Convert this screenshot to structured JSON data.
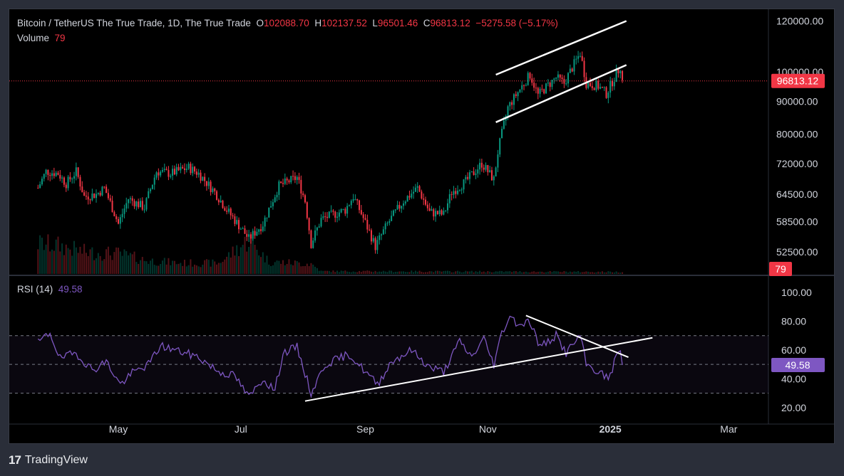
{
  "header": {
    "symbol": "Bitcoin / TetherUS The True Trade, 1D, The True Trade",
    "open_label": "O",
    "open": "102088.70",
    "high_label": "H",
    "high": "102137.52",
    "low_label": "L",
    "low": "96501.46",
    "close_label": "C",
    "close": "96813.12",
    "change": "−5275.58 (−5.17%)",
    "volume_label": "Volume",
    "volume": "79",
    "rsi_label": "RSI (14)",
    "rsi": "49.58"
  },
  "footer": {
    "brand": "TradingView",
    "logo": "tradingview-logo"
  },
  "colors": {
    "up": "#089981",
    "down": "#f23645",
    "rsi": "#7e57c2",
    "trendline": "#ffffff",
    "background": "#000000"
  },
  "chart_data": [
    {
      "type": "candlestick",
      "title": "Bitcoin / TetherUS The True Trade, 1D, The True Trade",
      "y_ticks": [
        "120000.00",
        "100000.00",
        "90000.00",
        "80000.00",
        "72000.00",
        "64500.00",
        "58500.00",
        "52500.00"
      ],
      "y_scale": "log",
      "ylim": [
        48500,
        122000
      ],
      "x_ticks": [
        "May",
        "Jul",
        "Sep",
        "Nov",
        "2025",
        "Mar"
      ],
      "x_range": [
        "2024-03-22",
        "2025-03-28"
      ],
      "last_price": "96813.12",
      "volume_last": "79",
      "price_path": [
        [
          "2024-03-22",
          66000
        ],
        [
          "2024-03-26",
          70000
        ],
        [
          "2024-04-01",
          69500
        ],
        [
          "2024-04-05",
          67000
        ],
        [
          "2024-04-10",
          70000
        ],
        [
          "2024-04-14",
          64000
        ],
        [
          "2024-04-20",
          64500
        ],
        [
          "2024-04-24",
          66000
        ],
        [
          "2024-05-01",
          58000
        ],
        [
          "2024-05-06",
          63500
        ],
        [
          "2024-05-14",
          61500
        ],
        [
          "2024-05-20",
          70000
        ],
        [
          "2024-05-27",
          69500
        ],
        [
          "2024-06-05",
          71000
        ],
        [
          "2024-06-10",
          69500
        ],
        [
          "2024-06-18",
          65000
        ],
        [
          "2024-06-24",
          61000
        ],
        [
          "2024-07-05",
          55000
        ],
        [
          "2024-07-12",
          58000
        ],
        [
          "2024-07-20",
          66500
        ],
        [
          "2024-07-29",
          68500
        ],
        [
          "2024-08-02",
          63000
        ],
        [
          "2024-08-05",
          54000
        ],
        [
          "2024-08-10",
          59000
        ],
        [
          "2024-08-22",
          61000
        ],
        [
          "2024-08-26",
          64000
        ],
        [
          "2024-09-06",
          53500
        ],
        [
          "2024-09-12",
          58000
        ],
        [
          "2024-09-20",
          63000
        ],
        [
          "2024-09-27",
          66000
        ],
        [
          "2024-10-03",
          60500
        ],
        [
          "2024-10-10",
          60000
        ],
        [
          "2024-10-14",
          65000
        ],
        [
          "2024-10-21",
          67500
        ],
        [
          "2024-10-29",
          72000
        ],
        [
          "2024-11-04",
          68000
        ],
        [
          "2024-11-06",
          75000
        ],
        [
          "2024-11-11",
          88000
        ],
        [
          "2024-11-13",
          90000
        ],
        [
          "2024-11-22",
          99000
        ],
        [
          "2024-11-26",
          92000
        ],
        [
          "2024-12-05",
          98000
        ],
        [
          "2024-12-09",
          96000
        ],
        [
          "2024-12-17",
          107000
        ],
        [
          "2024-12-20",
          96000
        ],
        [
          "2024-12-26",
          95000
        ],
        [
          "2024-12-30",
          92500
        ],
        [
          "2025-01-06",
          102000
        ],
        [
          "2025-01-07",
          96800
        ]
      ],
      "volume_path": [
        [
          "2024-03-22",
          0.45
        ],
        [
          "2024-04-01",
          0.42
        ],
        [
          "2024-04-15",
          0.32
        ],
        [
          "2024-05-01",
          0.3
        ],
        [
          "2024-05-15",
          0.2
        ],
        [
          "2024-06-01",
          0.16
        ],
        [
          "2024-06-20",
          0.16
        ],
        [
          "2024-07-05",
          0.5
        ],
        [
          "2024-07-15",
          0.18
        ],
        [
          "2024-08-05",
          0.15
        ],
        [
          "2024-08-10",
          0.04
        ],
        [
          "2025-01-07",
          0.03
        ]
      ],
      "channel_lines": [
        {
          "from": [
            "2024-11-05",
            99000
          ],
          "to": [
            "2025-01-09",
            120000
          ]
        },
        {
          "from": [
            "2024-11-05",
            83500
          ],
          "to": [
            "2025-01-09",
            102500
          ]
        }
      ]
    },
    {
      "type": "line",
      "title": "RSI (14)",
      "series": [
        {
          "name": "RSI (14)",
          "last": "49.58"
        }
      ],
      "y_ticks": [
        "100.00",
        "80.00",
        "60.00",
        "40.00",
        "20.00"
      ],
      "ylim": [
        10,
        105
      ],
      "band": [
        30,
        70
      ],
      "mid": 50,
      "rsi_path": [
        [
          "2024-03-22",
          65
        ],
        [
          "2024-03-28",
          72
        ],
        [
          "2024-04-02",
          54
        ],
        [
          "2024-04-10",
          58
        ],
        [
          "2024-04-18",
          46
        ],
        [
          "2024-04-25",
          52
        ],
        [
          "2024-05-02",
          36
        ],
        [
          "2024-05-08",
          44
        ],
        [
          "2024-05-16",
          50
        ],
        [
          "2024-05-22",
          63
        ],
        [
          "2024-06-03",
          58
        ],
        [
          "2024-06-10",
          55
        ],
        [
          "2024-06-20",
          45
        ],
        [
          "2024-06-28",
          42
        ],
        [
          "2024-07-05",
          27
        ],
        [
          "2024-07-12",
          40
        ],
        [
          "2024-07-18",
          32
        ],
        [
          "2024-07-22",
          58
        ],
        [
          "2024-07-29",
          62
        ],
        [
          "2024-08-05",
          30
        ],
        [
          "2024-08-12",
          50
        ],
        [
          "2024-08-24",
          57
        ],
        [
          "2024-09-01",
          45
        ],
        [
          "2024-09-07",
          36
        ],
        [
          "2024-09-14",
          52
        ],
        [
          "2024-09-24",
          60
        ],
        [
          "2024-10-03",
          48
        ],
        [
          "2024-10-10",
          45
        ],
        [
          "2024-10-18",
          66
        ],
        [
          "2024-10-24",
          55
        ],
        [
          "2024-10-30",
          68
        ],
        [
          "2024-11-04",
          50
        ],
        [
          "2024-11-08",
          72
        ],
        [
          "2024-11-12",
          84
        ],
        [
          "2024-11-16",
          78
        ],
        [
          "2024-11-22",
          80
        ],
        [
          "2024-11-27",
          62
        ],
        [
          "2024-12-05",
          70
        ],
        [
          "2024-12-10",
          58
        ],
        [
          "2024-12-17",
          70
        ],
        [
          "2024-12-20",
          50
        ],
        [
          "2024-12-27",
          44
        ],
        [
          "2024-12-31",
          40
        ],
        [
          "2025-01-06",
          62
        ],
        [
          "2025-01-07",
          49.58
        ]
      ],
      "trendlines": [
        {
          "from": [
            "2024-08-02",
            24.5
          ],
          "to": [
            "2025-01-22",
            68.5
          ]
        },
        {
          "from": [
            "2024-11-20",
            84
          ],
          "to": [
            "2025-01-10",
            55
          ]
        }
      ]
    }
  ]
}
